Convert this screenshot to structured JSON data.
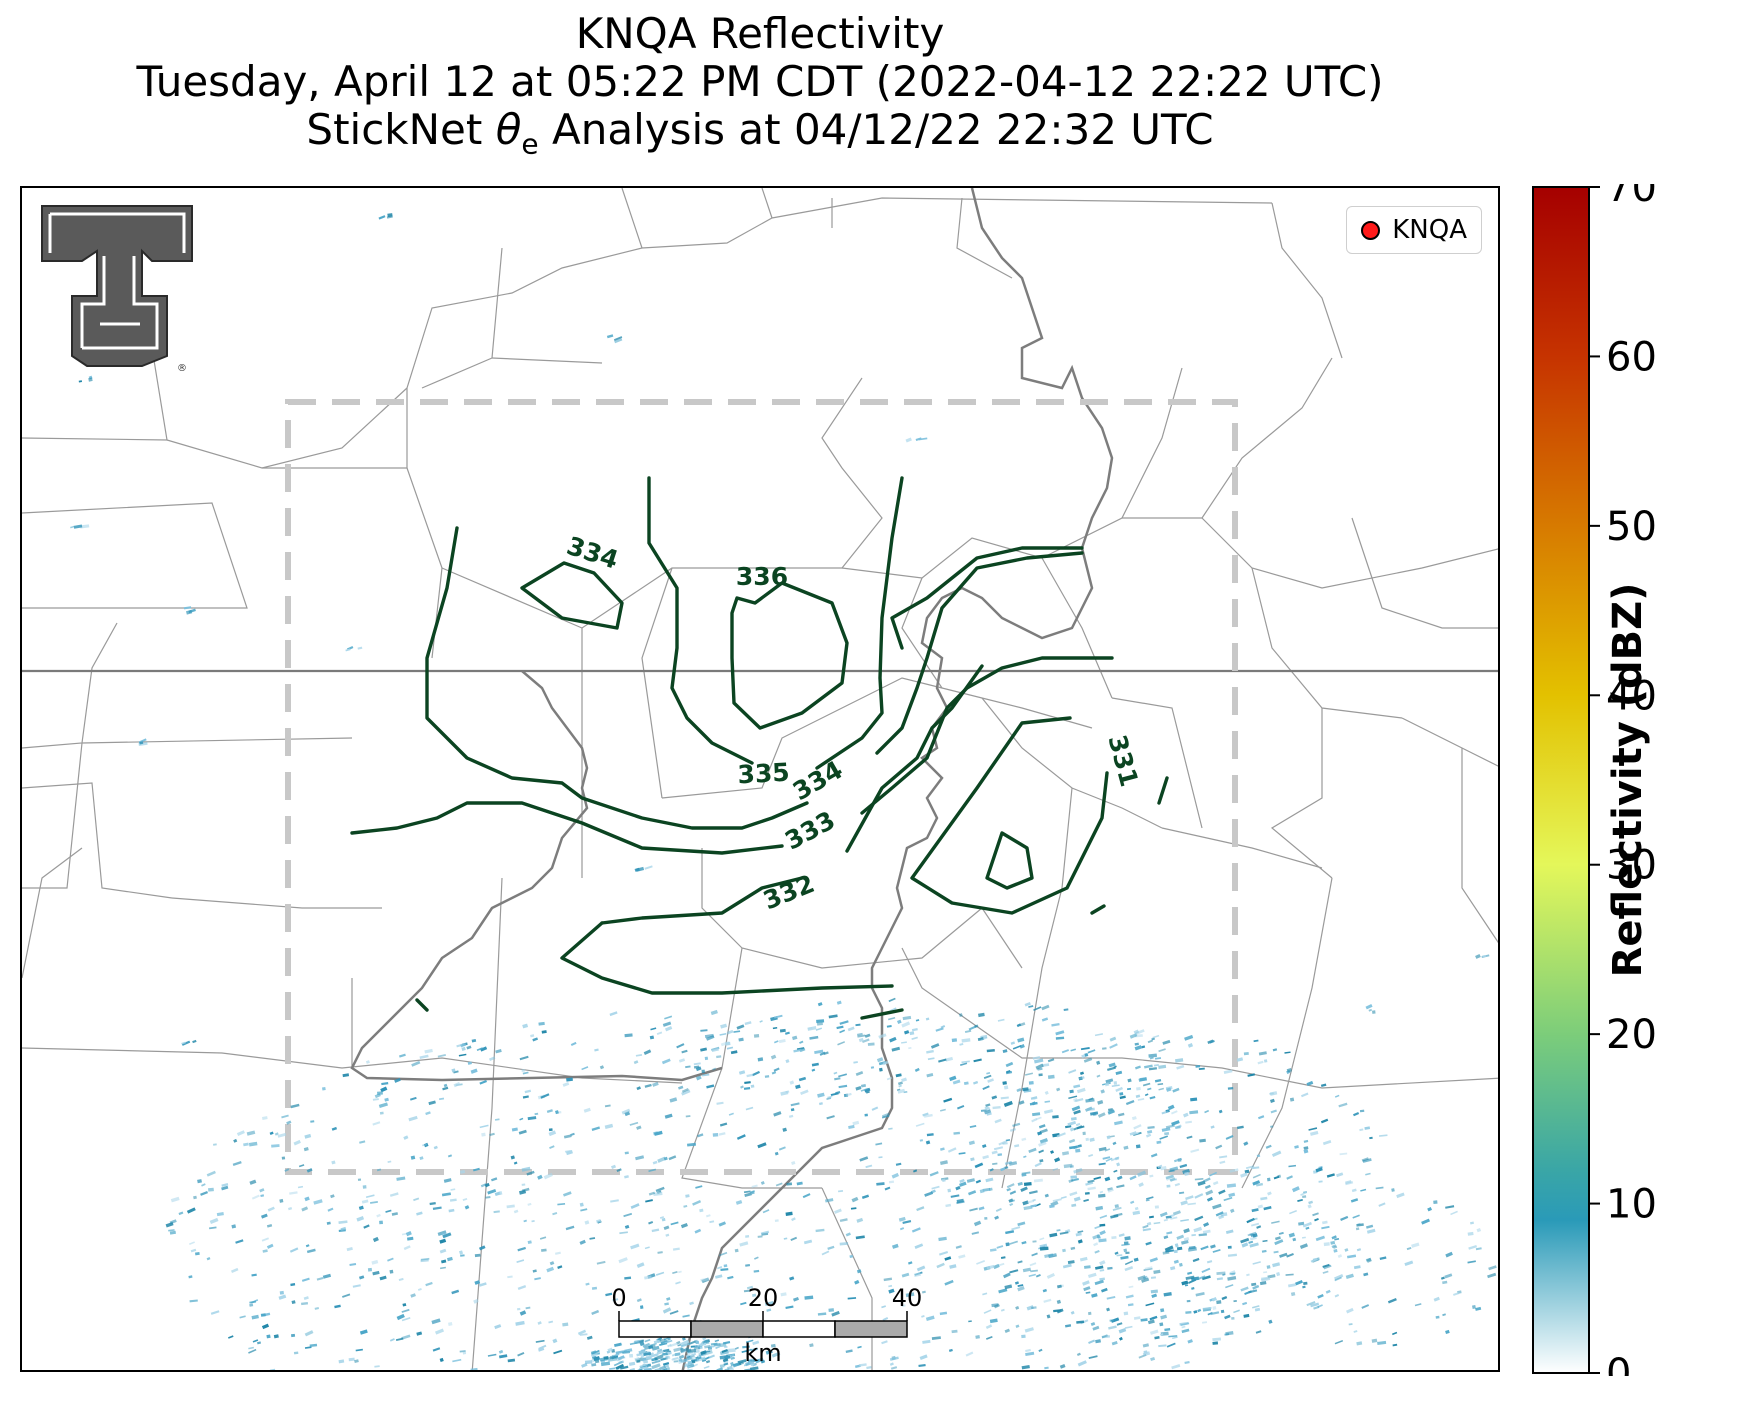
{
  "title": {
    "line1": "KNQA Reflectivity",
    "line2": "Tuesday, April 12 at 05:22 PM CDT (2022-04-12 22:22 UTC)",
    "line3_prefix": "StickNet ",
    "line3_theta": "θ",
    "line3_sub": "e",
    "line3_suffix": " Analysis at 04/12/22 22:32 UTC"
  },
  "legend": {
    "label": "KNQA",
    "marker_color": "#ff1a1a"
  },
  "logo": {
    "name": "Texas Tech Double T",
    "fill": "#5a5a5a"
  },
  "contours": {
    "color": "#0b4421",
    "labels": [
      "334",
      "336",
      "335",
      "334",
      "333",
      "332",
      "331"
    ]
  },
  "scalebar": {
    "ticks": [
      "0",
      "20",
      "40"
    ],
    "unit": "km"
  },
  "colorbar": {
    "label": "Reflectivity (dBZ)",
    "range": [
      0,
      70
    ],
    "ticks": [
      "0",
      "10",
      "20",
      "30",
      "40",
      "50",
      "60",
      "70"
    ],
    "stops": [
      {
        "v": 0,
        "c": "#ffffff"
      },
      {
        "v": 9,
        "c": "#2a9ab8"
      },
      {
        "v": 12,
        "c": "#3aa6a6"
      },
      {
        "v": 20,
        "c": "#7ccd7a"
      },
      {
        "v": 30,
        "c": "#e4f75a"
      },
      {
        "v": 40,
        "c": "#e3c100"
      },
      {
        "v": 50,
        "c": "#d77a00"
      },
      {
        "v": 60,
        "c": "#c63300"
      },
      {
        "v": 70,
        "c": "#a50000"
      }
    ]
  },
  "colors": {
    "frame": "#000000",
    "dashed_box": "#c8c8c8",
    "county": "#9a9a9a",
    "river": "#7d7d7d",
    "state_line": "#808080",
    "radar_echo": "#2f93b8"
  }
}
